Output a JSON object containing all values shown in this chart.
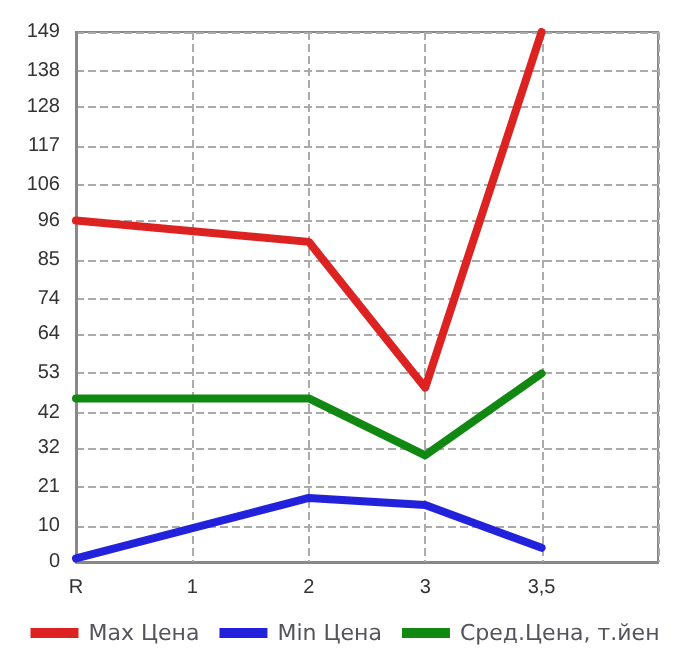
{
  "chart_data": {
    "type": "line",
    "categories": [
      "R",
      "1",
      "2",
      "3",
      "3,5",
      null
    ],
    "series": [
      {
        "name": "Max Цена",
        "color": "#dd2222",
        "values": [
          96,
          null,
          90,
          49,
          149,
          null
        ]
      },
      {
        "name": "Min Цена",
        "color": "#2222dd",
        "values": [
          1,
          null,
          18,
          16,
          4,
          null
        ]
      },
      {
        "name": "Сред.Цена, т.йен",
        "color": "#118811",
        "values": [
          46,
          null,
          46,
          30,
          53,
          null
        ]
      }
    ],
    "ylim": [
      0,
      149
    ],
    "yticks": [
      0,
      10,
      21,
      32,
      42,
      53,
      64,
      74,
      85,
      96,
      106,
      117,
      128,
      138,
      149
    ],
    "grid": true,
    "legend": "bottom",
    "marker": "none",
    "line_style": "solid"
  }
}
